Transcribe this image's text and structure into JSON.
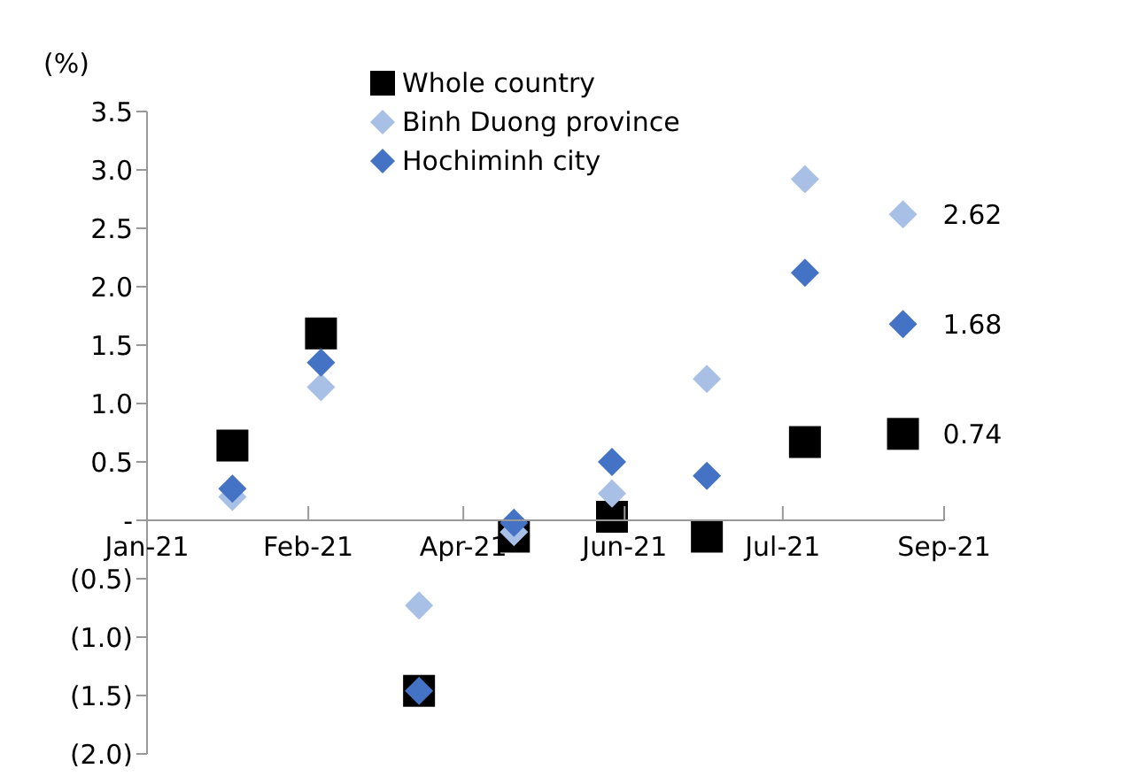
{
  "chart_data": {
    "type": "scatter",
    "ylabel": "(%)",
    "x": [
      "2021-01-31",
      "2021-02-28",
      "2021-03-31",
      "2021-04-30",
      "2021-05-31",
      "2021-06-30",
      "2021-07-31",
      "2021-08-31"
    ],
    "series": [
      {
        "name": "Whole country",
        "color": "#000000",
        "marker": "square",
        "values": [
          0.64,
          1.6,
          -1.46,
          -0.14,
          0.03,
          -0.14,
          0.67,
          0.74
        ],
        "value_labels": [
          null,
          null,
          null,
          null,
          null,
          null,
          null,
          "0.74"
        ]
      },
      {
        "name": "Binh Duong province",
        "color": "#a9c0e6",
        "marker": "diamond",
        "values": [
          0.2,
          1.14,
          -0.73,
          -0.1,
          0.23,
          1.21,
          2.92,
          2.62
        ],
        "value_labels": [
          null,
          null,
          null,
          null,
          null,
          null,
          null,
          "2.62"
        ]
      },
      {
        "name": "Hochiminh city",
        "color": "#4472c4",
        "marker": "diamond",
        "values": [
          0.27,
          1.35,
          -1.46,
          -0.02,
          0.5,
          0.38,
          2.12,
          1.68
        ],
        "value_labels": [
          null,
          null,
          null,
          null,
          null,
          null,
          null,
          "1.68"
        ]
      }
    ],
    "xlim": [
      "2021-01-04",
      "2021-09-13"
    ],
    "xticks": [
      {
        "value": "2021-01-04",
        "label": "Jan-21"
      },
      {
        "value": "2021-02-24",
        "label": "Feb-21"
      },
      {
        "value": "2021-04-14",
        "label": "Apr-21"
      },
      {
        "value": "2021-06-04",
        "label": "Jun-21"
      },
      {
        "value": "2021-07-24",
        "label": "Jul-21"
      },
      {
        "value": "2021-09-13",
        "label": "Sep-21"
      }
    ],
    "ylim": [
      -2,
      3.5
    ],
    "yticks": [
      {
        "value": -2,
        "label": "(2.0)"
      },
      {
        "value": -1.5,
        "label": "(1.5)"
      },
      {
        "value": -1,
        "label": "(1.0)"
      },
      {
        "value": -0.5,
        "label": "(0.5)"
      },
      {
        "value": 0,
        "label": "-"
      },
      {
        "value": 0.5,
        "label": "0.5"
      },
      {
        "value": 1,
        "label": "1.0"
      },
      {
        "value": 1.5,
        "label": "1.5"
      },
      {
        "value": 2,
        "label": "2.0"
      },
      {
        "value": 2.5,
        "label": "2.5"
      },
      {
        "value": 3,
        "label": "3.0"
      },
      {
        "value": 3.5,
        "label": "3.5"
      }
    ],
    "grid": false,
    "legend": "top"
  }
}
